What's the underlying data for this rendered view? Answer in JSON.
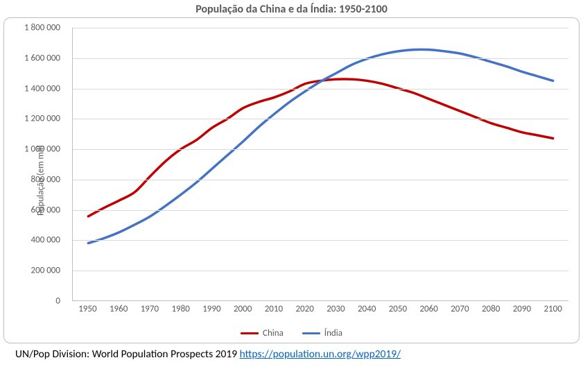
{
  "chart": {
    "type": "line",
    "title": "População da China e da Índia: 1950-2100",
    "title_fontsize": 16,
    "title_color": "#595959",
    "background_color": "#ffffff",
    "frame_border_color": "#bfbfbf",
    "frame_border_radius": 10,
    "grid_color": "#d9d9d9",
    "axis_color": "#bfbfbf",
    "tick_label_color": "#595959",
    "tick_label_fontsize": 13,
    "y_axis": {
      "title": "População (em mil)",
      "min": 0,
      "max": 1800000,
      "tick_step": 200000,
      "tick_labels": [
        "0",
        "200 000",
        "400 000",
        "600 000",
        "800 000",
        "1 000 000",
        "1 200 000",
        "1 400 000",
        "1 600 000",
        "1 800 000"
      ]
    },
    "x_axis": {
      "min": 1950,
      "max": 2100,
      "tick_step": 10,
      "tick_labels": [
        "1950",
        "1960",
        "1970",
        "1980",
        "1990",
        "2000",
        "2010",
        "2020",
        "2030",
        "2040",
        "2050",
        "2060",
        "2070",
        "2080",
        "2090",
        "2100"
      ]
    },
    "series": [
      {
        "name": "China",
        "color": "#c00000",
        "line_width": 3.5,
        "x": [
          1950,
          1955,
          1960,
          1965,
          1970,
          1975,
          1980,
          1985,
          1990,
          1995,
          2000,
          2005,
          2010,
          2015,
          2020,
          2025,
          2030,
          2035,
          2040,
          2045,
          2050,
          2055,
          2060,
          2065,
          2070,
          2075,
          2080,
          2085,
          2090,
          2095,
          2100
        ],
        "y": [
          555000,
          610000,
          660000,
          715000,
          820000,
          920000,
          1000000,
          1060000,
          1140000,
          1200000,
          1270000,
          1310000,
          1340000,
          1380000,
          1430000,
          1450000,
          1460000,
          1460000,
          1450000,
          1430000,
          1400000,
          1370000,
          1330000,
          1290000,
          1250000,
          1210000,
          1170000,
          1140000,
          1110000,
          1090000,
          1070000
        ]
      },
      {
        "name": "Índia",
        "color": "#4472c4",
        "line_width": 3.5,
        "x": [
          1950,
          1955,
          1960,
          1965,
          1970,
          1975,
          1980,
          1985,
          1990,
          1995,
          2000,
          2005,
          2010,
          2015,
          2020,
          2025,
          2030,
          2035,
          2040,
          2045,
          2050,
          2055,
          2060,
          2065,
          2070,
          2075,
          2080,
          2085,
          2090,
          2095,
          2100
        ],
        "y": [
          378000,
          410000,
          450000,
          500000,
          555000,
          625000,
          700000,
          780000,
          870000,
          960000,
          1050000,
          1145000,
          1230000,
          1310000,
          1380000,
          1445000,
          1500000,
          1555000,
          1595000,
          1625000,
          1645000,
          1655000,
          1655000,
          1645000,
          1630000,
          1605000,
          1575000,
          1545000,
          1510000,
          1480000,
          1450000
        ]
      }
    ],
    "legend": {
      "position": "bottom",
      "items": [
        {
          "label": "China",
          "color": "#c00000"
        },
        {
          "label": "Índia",
          "color": "#4472c4"
        }
      ]
    }
  },
  "source": {
    "prefix": "UN/Pop Division: World Population Prospects 2019 ",
    "link_text": "https://population.un.org/wpp2019/",
    "link_color": "#0563c1"
  }
}
